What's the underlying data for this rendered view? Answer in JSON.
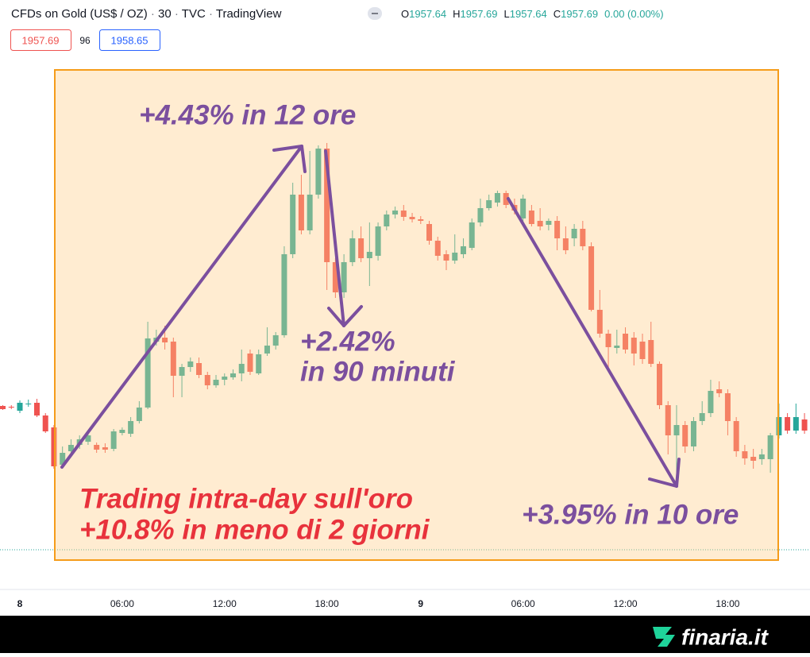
{
  "header": {
    "title": "CFDs on Gold (US$ / OZ)",
    "interval": "30",
    "exchange": "TVC",
    "source": "TradingView",
    "ohlc": [
      {
        "label": "O",
        "value": "1957.64"
      },
      {
        "label": "H",
        "value": "1957.69"
      },
      {
        "label": "L",
        "value": "1957.64"
      },
      {
        "label": "C",
        "value": "1957.69"
      }
    ],
    "change": "0.00 (0.00%)",
    "bid": "1957.69",
    "spread": "96",
    "ask": "1958.65"
  },
  "footer": {
    "brand": "finaria.it"
  },
  "chart_data": {
    "type": "candlestick",
    "up_color": "#26a69a",
    "down_color": "#ef5350",
    "ylim": [
      1938,
      2012
    ],
    "categories": [
      null,
      null,
      "8",
      null,
      null,
      null,
      null,
      null,
      null,
      null,
      null,
      null,
      null,
      null,
      "06:00",
      null,
      null,
      null,
      null,
      null,
      null,
      null,
      null,
      null,
      null,
      null,
      "12:00",
      null,
      null,
      null,
      null,
      null,
      null,
      null,
      null,
      null,
      null,
      null,
      "18:00",
      null,
      null,
      null,
      null,
      null,
      null,
      null,
      null,
      null,
      null,
      "9",
      null,
      null,
      null,
      null,
      null,
      null,
      null,
      null,
      null,
      null,
      null,
      "06:00",
      null,
      null,
      null,
      null,
      null,
      null,
      null,
      null,
      null,
      null,
      null,
      "12:00",
      null,
      null,
      null,
      null,
      null,
      null,
      null,
      null,
      null,
      null,
      null,
      "18:00",
      null,
      null,
      null,
      null,
      null,
      null,
      null,
      null,
      null
    ],
    "open": [
      1960.9,
      1960.8,
      1960.3,
      1961.2,
      1961.3,
      1959.7,
      1958.2,
      1953.5,
      1955.2,
      1956,
      1956.4,
      1956,
      1955.7,
      1955.5,
      1957.5,
      1957.4,
      1959,
      1960.7,
      1969,
      1969.5,
      1969,
      1964.7,
      1965.8,
      1966.3,
      1964.8,
      1963.5,
      1964.2,
      1964.5,
      1965,
      1967.5,
      1965,
      1967.5,
      1968.5,
      1969.8,
      1980,
      1987.5,
      1983,
      1987.5,
      1993.3,
      1979,
      1975.2,
      1979,
      1982,
      1979.5,
      1979.8,
      1983.5,
      1985,
      1985.5,
      1984.7,
      1984.4,
      1983.8,
      1981.7,
      1980,
      1979.2,
      1980,
      1980.8,
      1984,
      1985.8,
      1986.5,
      1987.7,
      1986.2,
      1984.5,
      1985.5,
      1984.2,
      1983.7,
      1984.2,
      1982,
      1982,
      1983.2,
      1981,
      1973,
      1970,
      1968.2,
      1970,
      1969.5,
      1969,
      1969.2,
      1966.2,
      1961,
      1957.2,
      1958.5,
      1955.8,
      1959,
      1960,
      1963,
      1962.5,
      1959,
      1955.2,
      1954.5,
      1954.2,
      1954.2,
      1957.2,
      1959.5,
      1957.8,
      1959.2
    ],
    "high": [
      1961,
      1961,
      1961.6,
      1961.7,
      1961.8,
      1960,
      1958.5,
      1955.8,
      1956.7,
      1957.2,
      1957.5,
      1956.3,
      1956.2,
      1958,
      1958.2,
      1959.5,
      1961.5,
      1971.5,
      1970.5,
      1971,
      1969.5,
      1966.2,
      1967,
      1967,
      1965.2,
      1964.8,
      1965,
      1965.5,
      1968,
      1968,
      1968,
      1970.8,
      1970.2,
      1981,
      1989,
      1990,
      1993,
      1993.7,
      1994,
      1979.5,
      1980,
      1983,
      1983.5,
      1984,
      1984,
      1985.5,
      1986,
      1986.2,
      1985.2,
      1984.8,
      1984.2,
      1982.2,
      1980.5,
      1982.5,
      1982,
      1984.5,
      1987,
      1987.5,
      1988,
      1988,
      1987,
      1987.5,
      1986.2,
      1985.8,
      1984.5,
      1984.8,
      1983.5,
      1983.8,
      1984.2,
      1981.5,
      1975.5,
      1970.5,
      1970.5,
      1970.8,
      1970.2,
      1970,
      1971.5,
      1966.5,
      1961.5,
      1961,
      1959,
      1959.5,
      1961.5,
      1964.2,
      1964,
      1963,
      1959.5,
      1956,
      1955.5,
      1955.5,
      1957.5,
      1961.2,
      1960,
      1961.2,
      1960
    ],
    "low": [
      1960.4,
      1960.5,
      1960,
      1960.8,
      1959.5,
      1957.5,
      1953,
      1953.2,
      1954.8,
      1955.5,
      1956,
      1955,
      1955,
      1955.2,
      1957.2,
      1957,
      1958.7,
      1960.5,
      1968.5,
      1968,
      1962,
      1962,
      1965.2,
      1964.4,
      1963,
      1963.2,
      1963.5,
      1964.2,
      1964,
      1964.8,
      1964.8,
      1967.2,
      1968,
      1969.5,
      1979.5,
      1982.5,
      1982.5,
      1987,
      1975.5,
      1974.5,
      1974.5,
      1978.5,
      1979,
      1976,
      1979.2,
      1983,
      1984.5,
      1984.2,
      1984,
      1983.8,
      1981.2,
      1979.2,
      1978,
      1978.8,
      1979.5,
      1980.5,
      1983.5,
      1985.5,
      1986,
      1985.8,
      1985,
      1983.5,
      1983.5,
      1983,
      1983,
      1980.5,
      1980,
      1981,
      1980.5,
      1972.8,
      1969.5,
      1965.8,
      1967.5,
      1967.5,
      1966,
      1966.2,
      1965.8,
      1960.5,
      1954.8,
      1952.5,
      1955,
      1955.2,
      1958.5,
      1959.5,
      1962,
      1957.2,
      1954.5,
      1953.5,
      1953,
      1953.5,
      1952.5,
      1956.8,
      1957.4,
      1957.4,
      1957.4
    ],
    "close": [
      1960.5,
      1960.7,
      1961.3,
      1961.2,
      1959.7,
      1957.7,
      1953.3,
      1955,
      1956,
      1956.7,
      1957.2,
      1955.4,
      1955.4,
      1957.7,
      1957.9,
      1959,
      1960.7,
      1969.4,
      1969.5,
      1968.9,
      1964.7,
      1965.8,
      1966.5,
      1964.8,
      1963.5,
      1964.2,
      1964.6,
      1965,
      1966.2,
      1965.2,
      1967.4,
      1968.5,
      1969.8,
      1980,
      1987.5,
      1983,
      1987.5,
      1993.3,
      1979,
      1975.2,
      1979,
      1982,
      1979.5,
      1980.3,
      1983.5,
      1985,
      1985.5,
      1984.7,
      1984.4,
      1984.2,
      1981.7,
      1979.8,
      1979.2,
      1980.2,
      1981,
      1984,
      1985.8,
      1986.8,
      1987.7,
      1986.2,
      1985.5,
      1987,
      1983.8,
      1983.5,
      1984.2,
      1982,
      1980.5,
      1983.2,
      1981,
      1973,
      1970,
      1968.3,
      1968.5,
      1968,
      1967.5,
      1966.8,
      1966.2,
      1961,
      1957.2,
      1958.5,
      1955.8,
      1959,
      1960,
      1962.8,
      1962.5,
      1959,
      1955.2,
      1954.3,
      1954,
      1954.8,
      1957.2,
      1959.5,
      1957.8,
      1959.5,
      1957.8
    ],
    "annotations": [
      {
        "text": "+4.43% in 12 ore",
        "color": "#7b4f9e"
      },
      {
        "text": "+2.42%",
        "color": "#7b4f9e"
      },
      {
        "text": "in 90 minuti",
        "color": "#7b4f9e"
      },
      {
        "text": "+3.95% in 10 ore",
        "color": "#7b4f9e"
      },
      {
        "text": "Trading intra-day sull'oro",
        "color": "#e8323c"
      },
      {
        "text": "+10.8% in meno di 2 giorni",
        "color": "#e8323c"
      }
    ]
  }
}
